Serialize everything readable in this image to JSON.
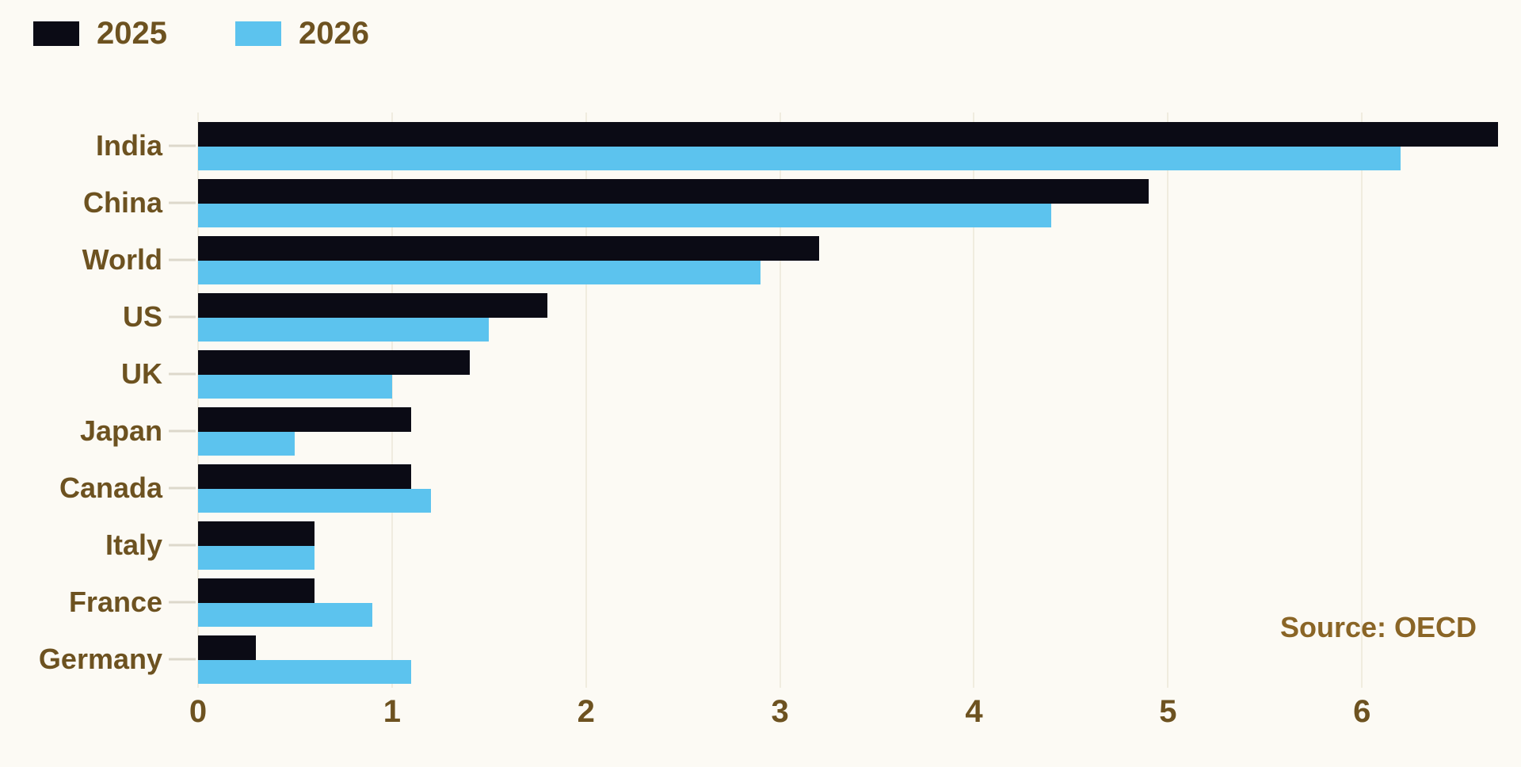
{
  "legend": {
    "items": [
      {
        "label": "2025",
        "color": "#0b0b15"
      },
      {
        "label": "2026",
        "color": "#5cc3ee"
      }
    ]
  },
  "source": "Source: OECD",
  "colors": {
    "background": "#fcfaf4",
    "series_2025": "#0b0b15",
    "series_2026": "#5cc3ee",
    "text_brown": "#6d5220",
    "source_brown": "#8a6526",
    "gridline": "#f0ecdf"
  },
  "chart_data": {
    "type": "bar",
    "orientation": "horizontal",
    "title": "",
    "xlabel": "",
    "ylabel": "",
    "categories": [
      "India",
      "China",
      "World",
      "US",
      "UK",
      "Japan",
      "Canada",
      "Italy",
      "France",
      "Germany"
    ],
    "series": [
      {
        "name": "2025",
        "color": "#0b0b15",
        "values": [
          6.7,
          4.9,
          3.2,
          1.8,
          1.4,
          1.1,
          1.1,
          0.6,
          0.6,
          0.3
        ]
      },
      {
        "name": "2026",
        "color": "#5cc3ee",
        "values": [
          6.2,
          4.4,
          2.9,
          1.5,
          1.0,
          0.5,
          1.2,
          0.6,
          0.9,
          1.1
        ]
      }
    ],
    "xticks": [
      0,
      1,
      2,
      3,
      4,
      5,
      6
    ],
    "xlim": [
      0,
      6.82
    ],
    "grid": true,
    "legend_position": "top-left",
    "source_label": "Source: OECD"
  }
}
